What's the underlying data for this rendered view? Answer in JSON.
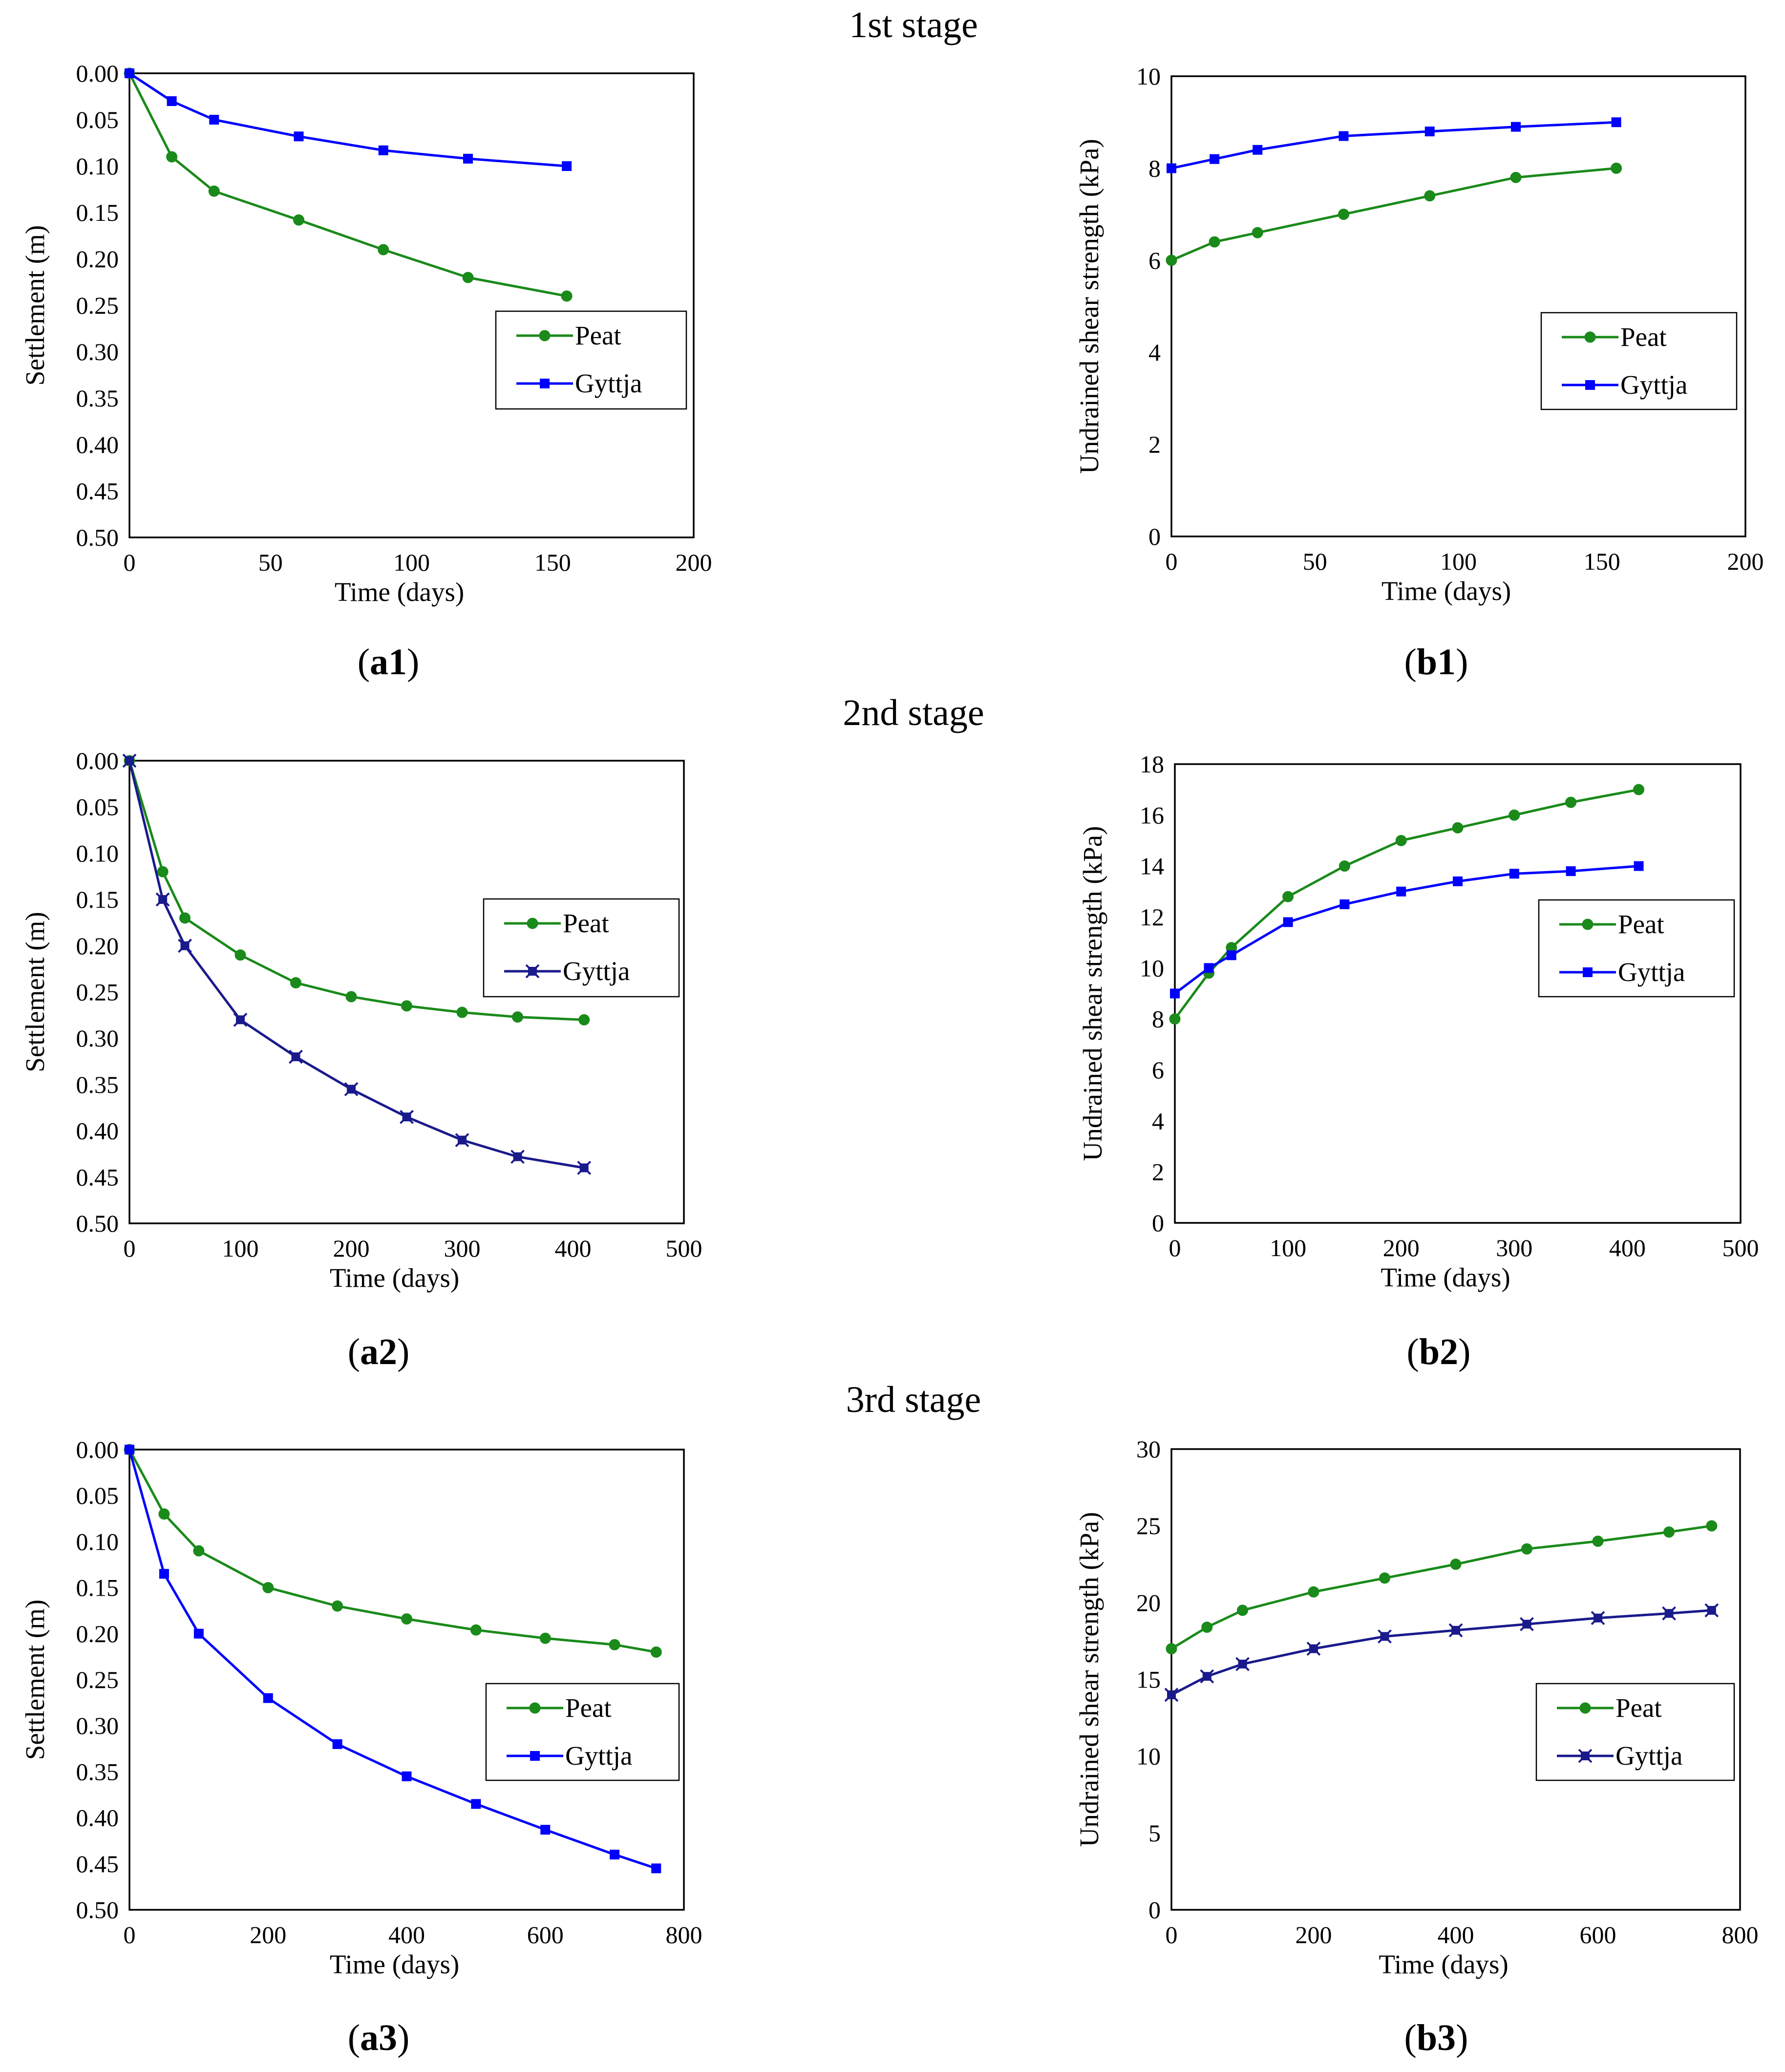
{
  "stages": [
    {
      "title": "1st stage"
    },
    {
      "title": "2nd stage"
    },
    {
      "title": "3rd stage"
    }
  ],
  "colors": {
    "peat": "#1a8a1a",
    "gyttja_blue": "#0000ff",
    "gyttja_navy": "#1a1a8c"
  },
  "chart_data": [
    {
      "id": "a1",
      "type": "line",
      "label_letter": "a",
      "label_number": "1",
      "xlabel": "Time (days)",
      "ylabel": "Settlement (m)",
      "xlim": [
        0,
        200
      ],
      "ylim": [
        0,
        0.5
      ],
      "y_inverted": true,
      "xticks": [
        0,
        50,
        100,
        150,
        200
      ],
      "yticks": [
        0.0,
        0.05,
        0.1,
        0.15,
        0.2,
        0.25,
        0.3,
        0.35,
        0.4,
        0.45,
        0.5
      ],
      "ytick_decimals": 2,
      "grid": true,
      "legend_position": "middle-right",
      "series": [
        {
          "name": "Peat",
          "color": "#1a8a1a",
          "marker": "circle",
          "x": [
            0,
            15,
            30,
            60,
            90,
            120,
            155
          ],
          "y": [
            0.0,
            0.09,
            0.127,
            0.158,
            0.19,
            0.22,
            0.24
          ]
        },
        {
          "name": "Gyttja",
          "color": "#0000ff",
          "marker": "square",
          "x": [
            0,
            15,
            30,
            60,
            90,
            120,
            155
          ],
          "y": [
            0.0,
            0.03,
            0.05,
            0.068,
            0.083,
            0.092,
            0.1
          ]
        }
      ]
    },
    {
      "id": "b1",
      "type": "line",
      "label_letter": "b",
      "label_number": "1",
      "xlabel": "Time (days)",
      "ylabel": "Undrained shear strength  (kPa)",
      "xlim": [
        0,
        200
      ],
      "ylim": [
        0,
        10
      ],
      "y_inverted": false,
      "xticks": [
        0,
        50,
        100,
        150,
        200
      ],
      "yticks": [
        0,
        2,
        4,
        6,
        8,
        10
      ],
      "ytick_decimals": 0,
      "grid": true,
      "legend_position": "middle-right",
      "series": [
        {
          "name": "Peat",
          "color": "#1a8a1a",
          "marker": "circle",
          "x": [
            0,
            15,
            30,
            60,
            90,
            120,
            155
          ],
          "y": [
            6.0,
            6.4,
            6.6,
            7.0,
            7.4,
            7.8,
            8.0
          ]
        },
        {
          "name": "Gyttja",
          "color": "#0000ff",
          "marker": "square",
          "x": [
            0,
            15,
            30,
            60,
            90,
            120,
            155
          ],
          "y": [
            8.0,
            8.2,
            8.4,
            8.7,
            8.8,
            8.9,
            9.0
          ]
        }
      ]
    },
    {
      "id": "a2",
      "type": "line",
      "label_letter": "a",
      "label_number": "2",
      "xlabel": "Time (days)",
      "ylabel": "Settlement (m)",
      "xlim": [
        0,
        500
      ],
      "ylim": [
        0,
        0.5
      ],
      "y_inverted": true,
      "xticks": [
        0,
        100,
        200,
        300,
        400,
        500
      ],
      "yticks": [
        0.0,
        0.05,
        0.1,
        0.15,
        0.2,
        0.25,
        0.3,
        0.35,
        0.4,
        0.45,
        0.5
      ],
      "ytick_decimals": 2,
      "grid": true,
      "legend_position": "top-right",
      "series": [
        {
          "name": "Peat",
          "color": "#1a8a1a",
          "marker": "circle",
          "x": [
            0,
            30,
            50,
            100,
            150,
            200,
            250,
            300,
            350,
            410
          ],
          "y": [
            0.0,
            0.12,
            0.17,
            0.21,
            0.24,
            0.255,
            0.265,
            0.272,
            0.277,
            0.28
          ]
        },
        {
          "name": "Gyttja",
          "color": "#1a1a8c",
          "marker": "star",
          "x": [
            0,
            30,
            50,
            100,
            150,
            200,
            250,
            300,
            350,
            410
          ],
          "y": [
            0.0,
            0.15,
            0.2,
            0.28,
            0.32,
            0.355,
            0.385,
            0.41,
            0.428,
            0.44
          ]
        }
      ]
    },
    {
      "id": "b2",
      "type": "line",
      "label_letter": "b",
      "label_number": "2",
      "xlabel": "Time (days)",
      "ylabel": "Undrained shear strength  (kPa)",
      "xlim": [
        0,
        500
      ],
      "ylim": [
        0,
        18
      ],
      "y_inverted": false,
      "xticks": [
        0,
        100,
        200,
        300,
        400,
        500
      ],
      "yticks": [
        0,
        2,
        4,
        6,
        8,
        10,
        12,
        14,
        16,
        18
      ],
      "ytick_decimals": 0,
      "grid": true,
      "legend_position": "middle-right",
      "series": [
        {
          "name": "Peat",
          "color": "#1a8a1a",
          "marker": "circle",
          "x": [
            0,
            30,
            50,
            100,
            150,
            200,
            250,
            300,
            350,
            410
          ],
          "y": [
            8.0,
            9.8,
            10.8,
            12.8,
            14.0,
            15.0,
            15.5,
            16.0,
            16.5,
            17.0
          ]
        },
        {
          "name": "Gyttja",
          "color": "#0000ff",
          "marker": "square",
          "x": [
            0,
            30,
            50,
            100,
            150,
            200,
            250,
            300,
            350,
            410
          ],
          "y": [
            9.0,
            10.0,
            10.5,
            11.8,
            12.5,
            13.0,
            13.4,
            13.7,
            13.8,
            14.0
          ]
        }
      ]
    },
    {
      "id": "a3",
      "type": "line",
      "label_letter": "a",
      "label_number": "3",
      "xlabel": "Time (days)",
      "ylabel": "Settlement (m)",
      "xlim": [
        0,
        800
      ],
      "ylim": [
        0,
        0.5
      ],
      "y_inverted": true,
      "xticks": [
        0,
        200,
        400,
        600,
        800
      ],
      "yticks": [
        0.0,
        0.05,
        0.1,
        0.15,
        0.2,
        0.25,
        0.3,
        0.35,
        0.4,
        0.45,
        0.5
      ],
      "ytick_decimals": 2,
      "grid": true,
      "legend_position": "middle-right",
      "series": [
        {
          "name": "Peat",
          "color": "#1a8a1a",
          "marker": "circle",
          "x": [
            0,
            50,
            100,
            200,
            300,
            400,
            500,
            600,
            700,
            760
          ],
          "y": [
            0.0,
            0.07,
            0.11,
            0.15,
            0.17,
            0.184,
            0.196,
            0.205,
            0.212,
            0.22
          ]
        },
        {
          "name": "Gyttja",
          "color": "#0000ff",
          "marker": "square",
          "x": [
            0,
            50,
            100,
            200,
            300,
            400,
            500,
            600,
            700,
            760
          ],
          "y": [
            0.0,
            0.135,
            0.2,
            0.27,
            0.32,
            0.355,
            0.385,
            0.413,
            0.44,
            0.455
          ]
        }
      ]
    },
    {
      "id": "b3",
      "type": "line",
      "label_letter": "b",
      "label_number": "3",
      "xlabel": "Time (days)",
      "ylabel": "Undrained shear strength  (kPa)",
      "xlim": [
        0,
        800
      ],
      "ylim": [
        0,
        30
      ],
      "y_inverted": false,
      "xticks": [
        0,
        200,
        400,
        600,
        800
      ],
      "yticks": [
        0,
        5,
        10,
        15,
        20,
        25,
        30
      ],
      "ytick_decimals": 0,
      "grid": true,
      "legend_position": "middle-right",
      "series": [
        {
          "name": "Peat",
          "color": "#1a8a1a",
          "marker": "circle",
          "x": [
            0,
            50,
            100,
            200,
            300,
            400,
            500,
            600,
            700,
            760
          ],
          "y": [
            17.0,
            18.4,
            19.5,
            20.7,
            21.6,
            22.5,
            23.5,
            24.0,
            24.6,
            25.0
          ]
        },
        {
          "name": "Gyttja",
          "color": "#1a1a8c",
          "marker": "star",
          "x": [
            0,
            50,
            100,
            200,
            300,
            400,
            500,
            600,
            700,
            760
          ],
          "y": [
            14.0,
            15.2,
            16.0,
            17.0,
            17.8,
            18.2,
            18.6,
            19.0,
            19.3,
            19.5
          ]
        }
      ]
    }
  ]
}
